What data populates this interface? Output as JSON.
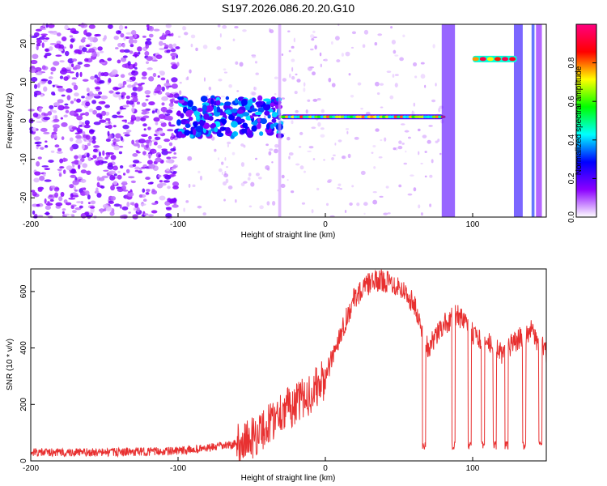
{
  "title": "S197.2026.086.20.20.G10",
  "chart_data": [
    {
      "type": "heatmap",
      "name": "spectrogram",
      "xlabel": "Height of straight line (km)",
      "ylabel": "Frequency (Hz)",
      "xlim": [
        -200,
        150
      ],
      "ylim": [
        -25,
        25
      ],
      "xticks": [
        -200,
        -100,
        0,
        100
      ],
      "yticks": [
        -20,
        -10,
        0,
        10,
        20
      ],
      "colorbar": {
        "label": "Normalized spectral amplitude",
        "range": [
          0,
          1
        ],
        "ticks": [
          "0.0",
          "0.2",
          "0.4",
          "0.6",
          "0.8"
        ],
        "colors": [
          "#ffffff",
          "#8b00ff",
          "#0000ff",
          "#00ffff",
          "#00ff00",
          "#ffff00",
          "#ff0000",
          "#ff0080"
        ]
      },
      "features": [
        {
          "name": "main-tone",
          "x": [
            -30,
            80
          ],
          "freq_hz": 1,
          "amplitude": 0.8
        },
        {
          "name": "upper-tone",
          "x": [
            100,
            130
          ],
          "freq_hz": 16,
          "amplitude": 0.9
        },
        {
          "name": "noise-region",
          "x": [
            -200,
            -100
          ],
          "amplitude": 0.3
        }
      ]
    },
    {
      "type": "line",
      "name": "snr",
      "xlabel": "Height of straight line (km)",
      "ylabel": "SNR (10 * v/v)",
      "xlim": [
        -200,
        150
      ],
      "ylim": [
        0,
        680
      ],
      "xticks": [
        -200,
        -100,
        0,
        100
      ],
      "yticks": [
        0,
        200,
        400,
        600
      ],
      "color": "#e83030",
      "series": [
        {
          "name": "SNR",
          "x": [
            -200,
            -150,
            -100,
            -80,
            -60,
            -50,
            -40,
            -30,
            -20,
            -10,
            0,
            10,
            20,
            30,
            40,
            50,
            60,
            66,
            70,
            80,
            90,
            100,
            110,
            120,
            130,
            140,
            150
          ],
          "y": [
            30,
            30,
            35,
            45,
            60,
            80,
            120,
            180,
            200,
            240,
            290,
            450,
            580,
            630,
            640,
            620,
            560,
            450,
            400,
            480,
            520,
            450,
            420,
            380,
            430,
            460,
            380
          ]
        }
      ]
    }
  ]
}
